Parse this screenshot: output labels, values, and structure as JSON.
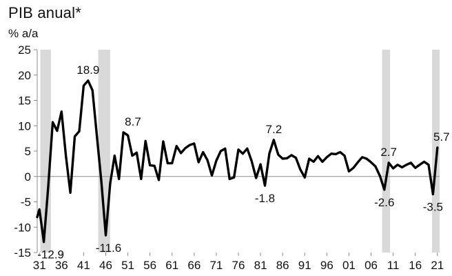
{
  "chart_data": {
    "type": "line",
    "title": "PIB anual*",
    "ylabel": "% a/a",
    "xlabel": "",
    "xlim": [
      1930.5,
      2021.5
    ],
    "ylim": [
      -15,
      25
    ],
    "yticks": [
      25,
      20,
      15,
      10,
      5,
      0,
      -5,
      -10,
      -15
    ],
    "xtick_labels": [
      "31",
      "36",
      "41",
      "46",
      "51",
      "56",
      "61",
      "66",
      "71",
      "76",
      "81",
      "86",
      "91",
      "96",
      "01",
      "06",
      "11",
      "16",
      "21"
    ],
    "xtick_years": [
      1931,
      1936,
      1941,
      1946,
      1951,
      1956,
      1961,
      1966,
      1971,
      1976,
      1981,
      1986,
      1991,
      1996,
      2001,
      2006,
      2011,
      2016,
      2021
    ],
    "shaded_periods": [
      [
        1931.2,
        1933.6
      ],
      [
        1944.3,
        1947.0
      ],
      [
        2008.5,
        2010.3
      ],
      [
        2019.8,
        2021.5
      ]
    ],
    "series": [
      {
        "x": [
          1930.5,
          1931,
          1932,
          1933,
          1934,
          1935,
          1936,
          1937,
          1938,
          1939,
          1940,
          1941,
          1942,
          1943,
          1944,
          1945,
          1946,
          1947,
          1948,
          1949,
          1950,
          1951,
          1952,
          1953,
          1954,
          1955,
          1956,
          1957,
          1958,
          1959,
          1960,
          1961,
          1962,
          1963,
          1964,
          1965,
          1966,
          1967,
          1968,
          1969,
          1970,
          1971,
          1972,
          1973,
          1974,
          1975,
          1976,
          1977,
          1978,
          1979,
          1980,
          1981,
          1982,
          1983,
          1984,
          1985,
          1986,
          1987,
          1988,
          1989,
          1990,
          1991,
          1992,
          1993,
          1994,
          1995,
          1996,
          1997,
          1998,
          1999,
          2000,
          2001,
          2002,
          2003,
          2004,
          2005,
          2006,
          2007,
          2008,
          2009,
          2010,
          2011,
          2012,
          2013,
          2014,
          2015,
          2016,
          2017,
          2018,
          2019,
          2020,
          2021
        ],
        "values": [
          -8.0,
          -6.5,
          -12.9,
          -2.0,
          10.7,
          9.0,
          12.8,
          4.0,
          -3.2,
          7.9,
          8.9,
          17.9,
          18.9,
          17.0,
          8.0,
          -1.0,
          -11.6,
          -1.4,
          4.1,
          -0.5,
          8.7,
          8.1,
          4.1,
          4.7,
          -0.5,
          7.0,
          2.2,
          2.1,
          -0.7,
          6.9,
          2.6,
          2.6,
          6.0,
          4.6,
          5.6,
          6.2,
          6.5,
          2.8,
          4.8,
          3.2,
          0.2,
          3.1,
          5.0,
          5.5,
          -0.5,
          -0.2,
          5.3,
          4.5,
          5.5,
          3.0,
          -0.3,
          2.4,
          -1.8,
          4.5,
          7.2,
          4.3,
          3.5,
          3.6,
          4.2,
          3.7,
          1.4,
          -0.2,
          3.5,
          2.9,
          4.0,
          2.9,
          3.8,
          4.5,
          4.4,
          4.8,
          4.1,
          1.0,
          1.7,
          2.8,
          3.8,
          3.5,
          2.8,
          2.0,
          0.1,
          -2.6,
          2.7,
          1.6,
          2.3,
          1.8,
          2.3,
          2.7,
          1.7,
          2.3,
          2.9,
          2.3,
          -3.5,
          5.7
        ]
      }
    ],
    "annotations": [
      {
        "text": "-12.9",
        "x": 1932,
        "y": -12.9,
        "pos": "below"
      },
      {
        "text": "18.9",
        "x": 1942,
        "y": 18.9,
        "pos": "above"
      },
      {
        "text": "-11.6",
        "x": 1946,
        "y": -11.6,
        "pos": "below"
      },
      {
        "text": "8.7",
        "x": 1950,
        "y": 8.7,
        "pos": "above-right"
      },
      {
        "text": "-1.8",
        "x": 1982,
        "y": -1.8,
        "pos": "below"
      },
      {
        "text": "7.2",
        "x": 1984,
        "y": 7.2,
        "pos": "above"
      },
      {
        "text": "-2.6",
        "x": 2009,
        "y": -2.6,
        "pos": "below"
      },
      {
        "text": "2.7",
        "x": 2010,
        "y": 2.7,
        "pos": "above"
      },
      {
        "text": "-3.5",
        "x": 2020,
        "y": -3.5,
        "pos": "below"
      },
      {
        "text": "5.7",
        "x": 2021,
        "y": 5.7,
        "pos": "above"
      }
    ],
    "colors": {
      "line": "#000000",
      "shade": "#d9d9d9",
      "axis": "#8c8c8c"
    },
    "grid": false,
    "zero_line": true
  }
}
